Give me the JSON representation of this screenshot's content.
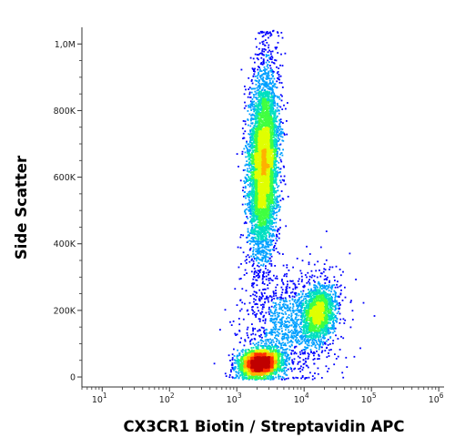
{
  "chart_data": {
    "type": "scatter",
    "subtype": "flow-cytometry-density-dot-plot",
    "xlabel": "CX3CR1 Biotin / Streptavidin APC",
    "ylabel": "Side Scatter",
    "x_scale": "log",
    "xlim": [
      5,
      1200000
    ],
    "ylim": [
      -30000,
      1050000
    ],
    "x_ticks": [
      {
        "value": 10,
        "base": "10",
        "exp": "1"
      },
      {
        "value": 100,
        "base": "10",
        "exp": "2"
      },
      {
        "value": 1000,
        "base": "10",
        "exp": "3"
      },
      {
        "value": 10000,
        "base": "10",
        "exp": "4"
      },
      {
        "value": 100000,
        "base": "10",
        "exp": "5"
      },
      {
        "value": 1000000,
        "base": "10",
        "exp": "6"
      }
    ],
    "y_ticks": [
      {
        "value": 0,
        "label": "0"
      },
      {
        "value": 200000,
        "label": "200K"
      },
      {
        "value": 400000,
        "label": "400K"
      },
      {
        "value": 600000,
        "label": "600K"
      },
      {
        "value": 800000,
        "label": "800K"
      },
      {
        "value": 1000000,
        "label": "1,0M"
      }
    ],
    "populations": [
      {
        "x_center": 2500,
        "x_log_sd": 0.11,
        "y_center": 640000,
        "y_sd": 150000,
        "count": 5200
      },
      {
        "x_center": 2200,
        "x_log_sd": 0.16,
        "y_center": 40000,
        "y_sd": 22000,
        "count": 2600
      },
      {
        "x_center": 16000,
        "x_log_sd": 0.13,
        "y_center": 190000,
        "y_sd": 45000,
        "count": 1500
      },
      {
        "x_center": 6000,
        "x_log_sd": 0.35,
        "y_center": 150000,
        "y_sd": 90000,
        "count": 1100
      }
    ],
    "colormap": [
      "#0000ff",
      "#00a0ff",
      "#00e0c0",
      "#40ff40",
      "#e0ff00",
      "#ffb000",
      "#ff3000",
      "#c00000"
    ],
    "grid": false,
    "legend": "none"
  }
}
